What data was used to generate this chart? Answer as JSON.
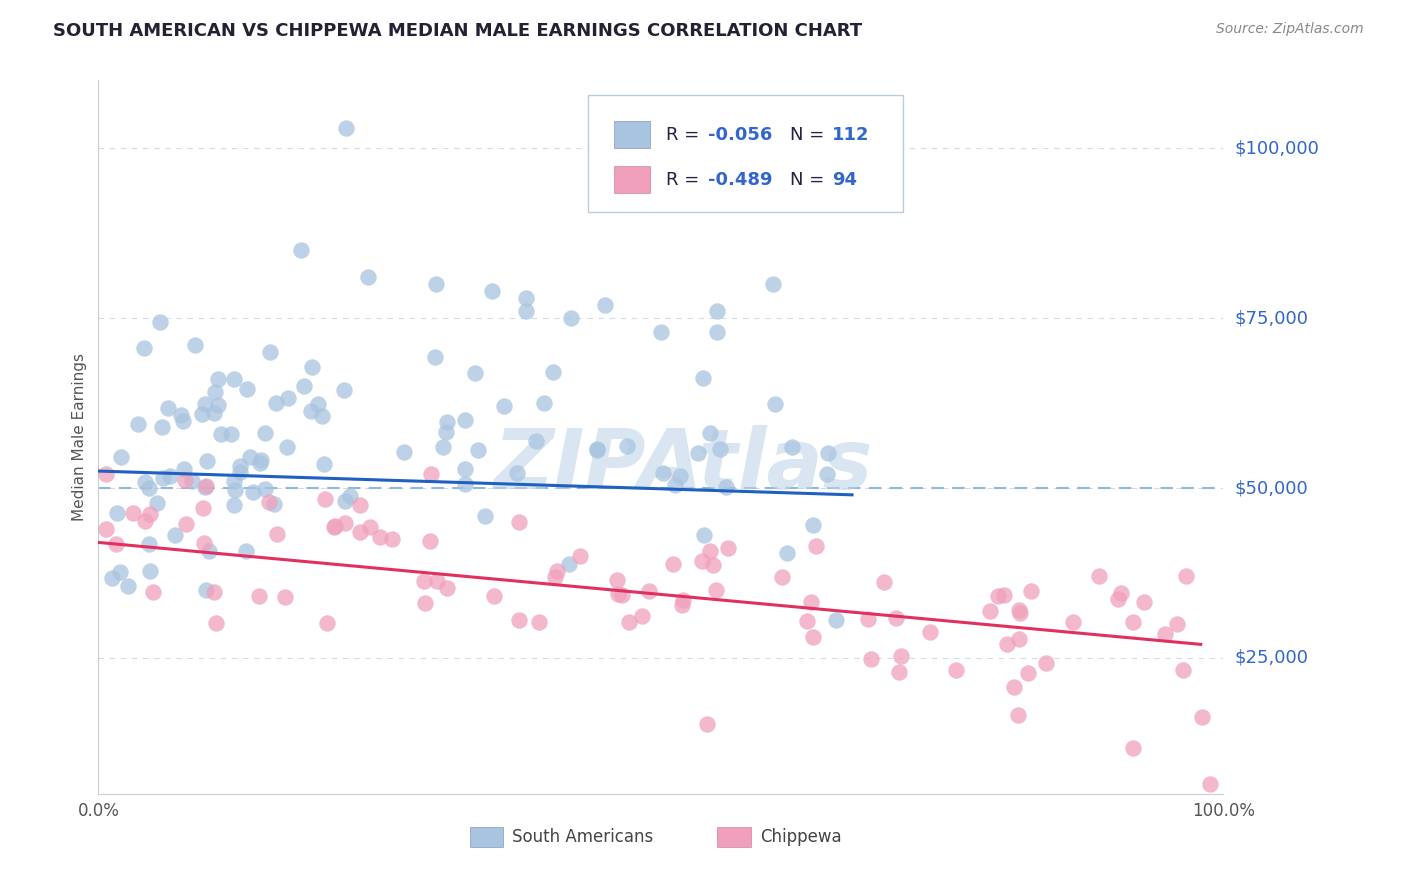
{
  "title": "SOUTH AMERICAN VS CHIPPEWA MEDIAN MALE EARNINGS CORRELATION CHART",
  "source": "Source: ZipAtlas.com",
  "ylabel": "Median Male Earnings",
  "x_min": 0.0,
  "x_max": 1.0,
  "y_min": 5000,
  "y_max": 110000,
  "yticks": [
    25000,
    50000,
    75000,
    100000
  ],
  "ytick_labels": [
    "$25,000",
    "$50,000",
    "$75,000",
    "$100,000"
  ],
  "xtick_labels": [
    "0.0%",
    "100.0%"
  ],
  "label1": "South Americans",
  "label2": "Chippewa",
  "color1": "#a8c4e0",
  "color2": "#f0a0bc",
  "line_color1": "#2060c0",
  "line_color2": "#e03060",
  "dashed_color": "#90b8d8",
  "text_color_dark": "#333355",
  "text_color_blue": "#3366cc",
  "watermark": "ZIPAtlas",
  "watermark_color": "#c0d4e8",
  "background_color": "#ffffff",
  "grid_color": "#c8d8e8",
  "axis_color": "#cccccc",
  "ytick_color": "#3366cc",
  "source_color": "#888888"
}
